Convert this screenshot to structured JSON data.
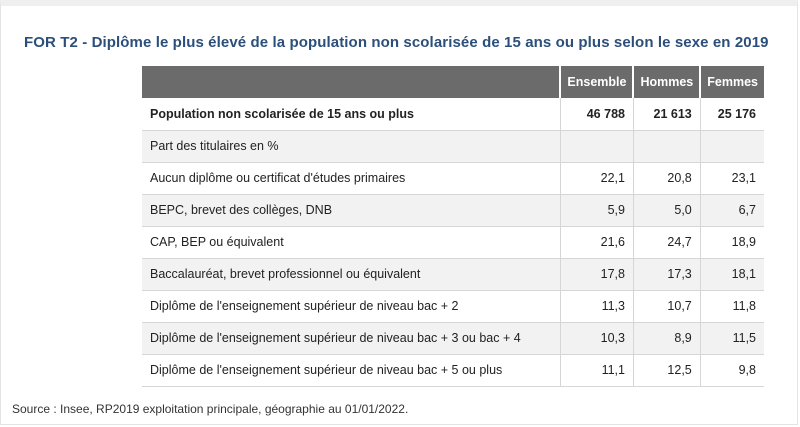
{
  "title": "FOR T2 - Diplôme le plus élevé de la population non scolarisée de 15 ans ou plus selon le sexe en 2019",
  "table": {
    "headers": [
      "",
      "Ensemble",
      "Hommes",
      "Femmes"
    ],
    "rows": [
      {
        "label": "Population non scolarisée de 15 ans ou plus",
        "values": [
          "46 788",
          "21 613",
          "25 176"
        ],
        "bold": true
      },
      {
        "label": "Part des titulaires en %",
        "values": [
          "",
          "",
          ""
        ]
      },
      {
        "label": "Aucun diplôme ou certificat d'études primaires",
        "values": [
          "22,1",
          "20,8",
          "23,1"
        ]
      },
      {
        "label": "BEPC, brevet des collèges, DNB",
        "values": [
          "5,9",
          "5,0",
          "6,7"
        ]
      },
      {
        "label": "CAP, BEP ou équivalent",
        "values": [
          "21,6",
          "24,7",
          "18,9"
        ]
      },
      {
        "label": "Baccalauréat, brevet professionnel ou équivalent",
        "values": [
          "17,8",
          "17,3",
          "18,1"
        ]
      },
      {
        "label": "Diplôme de l'enseignement supérieur de niveau bac + 2",
        "values": [
          "11,3",
          "10,7",
          "11,8"
        ]
      },
      {
        "label": "Diplôme de l'enseignement supérieur de niveau bac + 3 ou bac + 4",
        "values": [
          "10,3",
          "8,9",
          "11,5"
        ]
      },
      {
        "label": "Diplôme de l'enseignement supérieur de niveau bac + 5 ou plus",
        "values": [
          "11,1",
          "12,5",
          "9,8"
        ]
      }
    ]
  },
  "source": "Source : Insee, RP2019 exploitation principale, géographie au 01/01/2022."
}
